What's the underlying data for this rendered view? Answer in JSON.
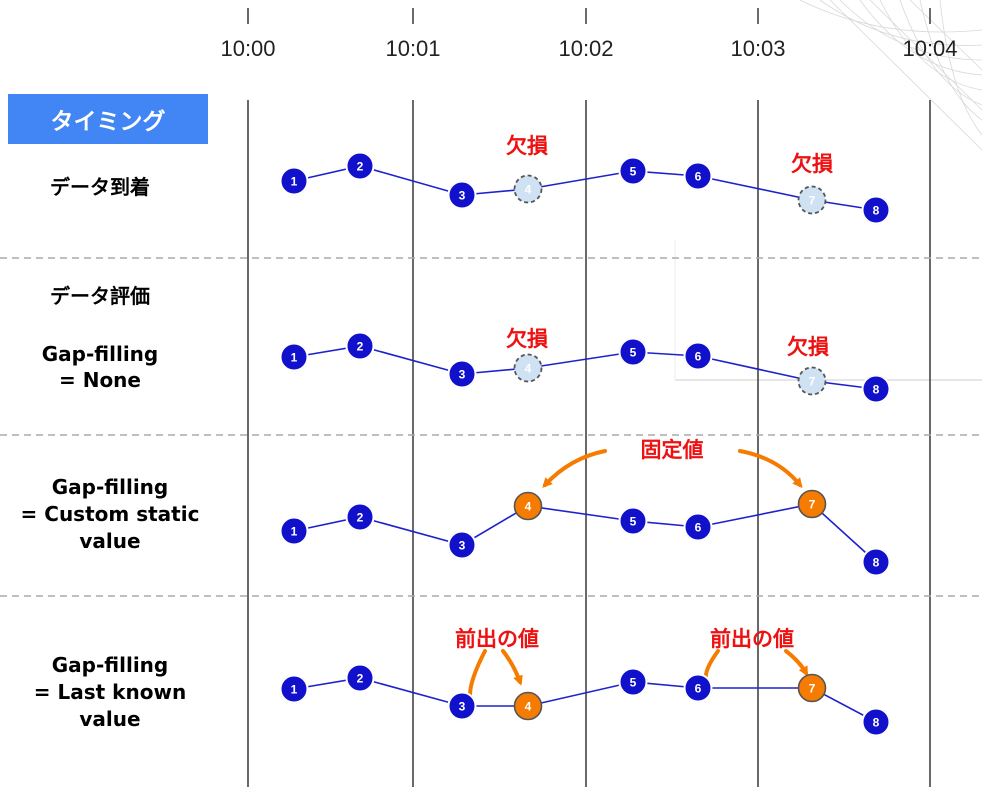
{
  "timing_label": "タイミング",
  "time_ticks": [
    "10:00",
    "10:01",
    "10:02",
    "10:03",
    "10:04"
  ],
  "rows": [
    {
      "id": "arrival",
      "label_lines": [
        "データ到着"
      ]
    },
    {
      "id": "eval-none",
      "label_lines": [
        "データ評価",
        "Gap-filling",
        "= None"
      ]
    },
    {
      "id": "custom",
      "label_lines": [
        "Gap-filling",
        "= Custom static",
        "value"
      ]
    },
    {
      "id": "lastknown",
      "label_lines": [
        "Gap-filling",
        "= Last known",
        "value"
      ]
    }
  ],
  "annotations": {
    "missing": "欠損",
    "static_value": "固定値",
    "previous_value": "前出の値"
  },
  "point_labels": [
    "1",
    "2",
    "3",
    "4",
    "5",
    "6",
    "7",
    "8"
  ],
  "colors": {
    "node_blue": "#1111cc",
    "line_blue": "#1e22cc",
    "missing_fill": "#cfe2f3",
    "filled_orange": "#f57c00",
    "annotation_red": "#ee1111",
    "badge_blue": "#4285f4"
  }
}
